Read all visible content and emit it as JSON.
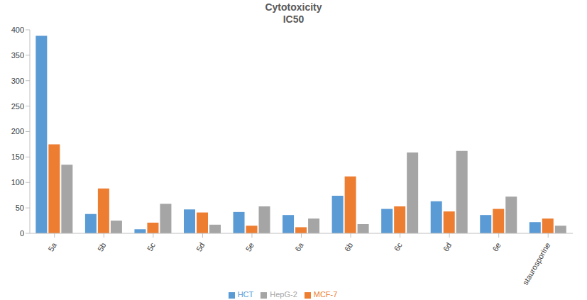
{
  "chart_data": {
    "type": "bar",
    "title": "Cytotoxicity",
    "subtitle": "IC50",
    "categories": [
      "5a",
      "5b",
      "5c",
      "5d",
      "5e",
      "6a",
      "6b",
      "6c",
      "6d",
      "6e",
      "staurosporine"
    ],
    "series": [
      {
        "name": "HCT",
        "color": "#5b9bd5",
        "values": [
          388,
          38,
          8,
          47,
          42,
          36,
          74,
          48,
          63,
          36,
          22
        ]
      },
      {
        "name": "MCF-7",
        "color": "#ed7d31",
        "values": [
          175,
          88,
          21,
          41,
          15,
          12,
          112,
          53,
          43,
          48,
          29
        ]
      },
      {
        "name": "HepG-2",
        "color": "#a5a5a5",
        "values": [
          135,
          25,
          58,
          17,
          53,
          29,
          18,
          159,
          162,
          72,
          15
        ]
      }
    ],
    "ylim": [
      0,
      400
    ],
    "yticks": [
      0,
      50,
      100,
      150,
      200,
      250,
      300,
      350,
      400
    ],
    "grid": false,
    "legend": "bottom"
  }
}
